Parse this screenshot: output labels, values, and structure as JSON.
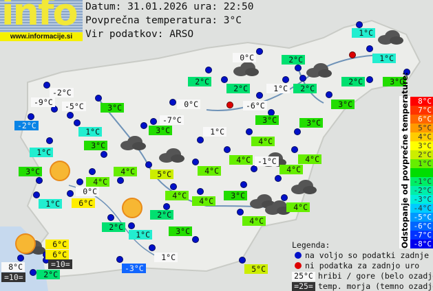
{
  "logo": {
    "text": "info",
    "url": "www.informacije.si"
  },
  "header": {
    "date_line": "Datum: 31.01.2026 ura: 22:50",
    "avg_line": "Povprečna temperatura: 3°C",
    "source_line": "Vir podatkov: ARSO"
  },
  "colors": {
    "station_dot": "#0010c8",
    "no_data_dot": "#dd0000"
  },
  "stations": [
    {
      "temp": "1°C",
      "bg": "#22eed0"
    },
    {
      "temp": "0°C",
      "bg": "#f8f8f8"
    },
    {
      "temp": "2°C",
      "bg": "#00e070"
    },
    {
      "temp": "1°C",
      "bg": "#22eed0"
    },
    {
      "temp": "2°C",
      "bg": "#00e070"
    },
    {
      "temp": "2°C",
      "bg": "#00e070"
    },
    {
      "temp": "1°C",
      "bg": "#f8f8f8"
    },
    {
      "temp": "2°C",
      "bg": "#00e070"
    },
    {
      "temp": "2°C",
      "bg": "#00e070"
    },
    {
      "temp": "3°C",
      "bg": "#22dd00"
    },
    {
      "temp": "-2°C",
      "bg": "#f8f8f8"
    },
    {
      "temp": "-9°C",
      "bg": "#f8f8f8"
    },
    {
      "temp": "-5°C",
      "bg": "#f8f8f8"
    },
    {
      "temp": "3°C",
      "bg": "#22dd00"
    },
    {
      "temp": "-6°C",
      "bg": "#f8f8f8"
    },
    {
      "temp": "3°C",
      "bg": "#22dd00"
    },
    {
      "temp": "0°C",
      "bg": "#f8f8f8"
    },
    {
      "temp": "-2°C",
      "bg": "#0a84e6"
    },
    {
      "temp": "-7°C",
      "bg": "#f8f8f8"
    },
    {
      "temp": "3°C",
      "bg": "#22dd00"
    },
    {
      "temp": "3°C",
      "bg": "#22dd00"
    },
    {
      "temp": "3°C",
      "bg": "#22dd00"
    },
    {
      "temp": "1°C",
      "bg": "#22eed0"
    },
    {
      "temp": "1°C",
      "bg": "#f8f8f8"
    },
    {
      "temp": "3°C",
      "bg": "#22dd00"
    },
    {
      "temp": "4°C",
      "bg": "#66ee00"
    },
    {
      "temp": "1°C",
      "bg": "#22eed0"
    },
    {
      "temp": "4°C",
      "bg": "#66ee00"
    },
    {
      "temp": "-1°C",
      "bg": "#f8f8f8"
    },
    {
      "temp": "4°C",
      "bg": "#66ee00"
    },
    {
      "temp": "3°C",
      "bg": "#22dd00"
    },
    {
      "temp": "4°C",
      "bg": "#66ee00"
    },
    {
      "temp": "5°C",
      "bg": "#ccee00"
    },
    {
      "temp": "4°C",
      "bg": "#66ee00"
    },
    {
      "temp": "4°C",
      "bg": "#66ee00"
    },
    {
      "temp": "4°C",
      "bg": "#66ee00"
    },
    {
      "temp": "0°C",
      "bg": "#f8f8f8"
    },
    {
      "temp": "4°C",
      "bg": "#66ee00"
    },
    {
      "temp": "3°C",
      "bg": "#22dd00"
    },
    {
      "temp": "1°C",
      "bg": "#22eed0"
    },
    {
      "temp": "6°C",
      "bg": "#ffee00"
    },
    {
      "temp": "4°C",
      "bg": "#66ee00"
    },
    {
      "temp": "4°C",
      "bg": "#66ee00"
    },
    {
      "temp": "2°C",
      "bg": "#00e070"
    },
    {
      "temp": "2°C",
      "bg": "#00e070"
    },
    {
      "temp": "1°C",
      "bg": "#22eed0"
    },
    {
      "temp": "3°C",
      "bg": "#22dd00"
    },
    {
      "temp": "4°C",
      "bg": "#66ee00"
    },
    {
      "temp": "6°C",
      "bg": "#ffee00"
    },
    {
      "temp": "6°C",
      "bg": "#ffee00"
    },
    {
      "temp": "=10=",
      "bg": "#333333"
    },
    {
      "temp": "8°C",
      "bg": "#f8f8f8"
    },
    {
      "temp": "1°C",
      "bg": "#f8f8f8"
    },
    {
      "temp": "=10=",
      "bg": "#333333"
    },
    {
      "temp": "2°C",
      "bg": "#00e070"
    },
    {
      "temp": "-3°C",
      "bg": "#1166ff"
    },
    {
      "temp": "5°C",
      "bg": "#ccee00"
    }
  ],
  "scale": {
    "title": "Odstopanje od povprečne temperature:",
    "cells": [
      {
        "label": "8°C",
        "bg": "#ff0000"
      },
      {
        "label": "7°C",
        "bg": "#ff3300"
      },
      {
        "label": "6°C",
        "bg": "#ff6600"
      },
      {
        "label": "5°C",
        "bg": "#ff9900"
      },
      {
        "label": "4°C",
        "bg": "#ffcc00"
      },
      {
        "label": "3°C",
        "bg": "#ffff00"
      },
      {
        "label": "2°C",
        "bg": "#ccee00"
      },
      {
        "label": "1°C",
        "bg": "#66ee00"
      },
      {
        "label": "",
        "bg": "#00dd00"
      },
      {
        "label": "-1°C",
        "bg": "#00ee66"
      },
      {
        "label": "-2°C",
        "bg": "#00eeaa"
      },
      {
        "label": "-3°C",
        "bg": "#00eedd"
      },
      {
        "label": "-4°C",
        "bg": "#00ccff"
      },
      {
        "label": "-5°C",
        "bg": "#0099ff"
      },
      {
        "label": "-6°C",
        "bg": "#0066ff"
      },
      {
        "label": "-7°C",
        "bg": "#0033ff"
      },
      {
        "label": "-8°C",
        "bg": "#0000ee"
      }
    ]
  },
  "legend": {
    "title": "Legenda:",
    "blue_dot": "na voljo so podatki zadnje ure",
    "red_dot": "ni podatka za zadnjo uro",
    "white_sample": "25°C",
    "white_text": "hribi / gore (belo ozadje)",
    "dark_sample": "=25=",
    "dark_text": "temp. morja (temno ozadje)"
  }
}
